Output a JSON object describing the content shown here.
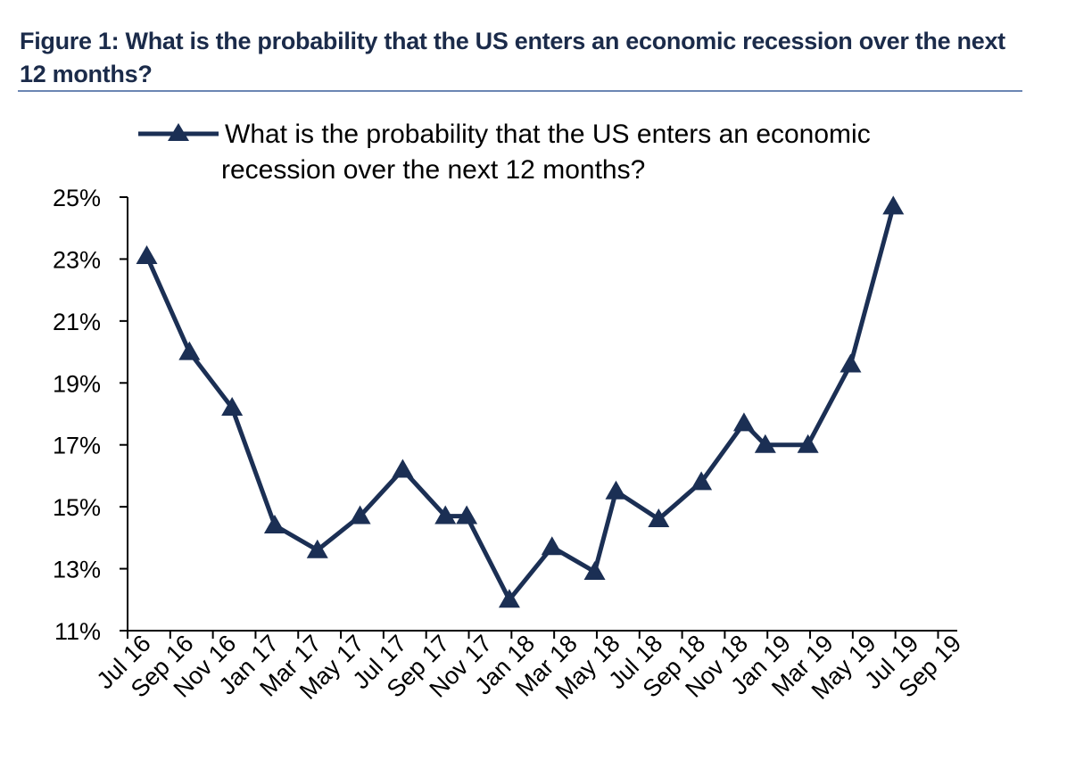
{
  "figure_title": "Figure 1: What is the probability that the US enters an economic recession over the next 12 months?",
  "colors": {
    "series": "#1b2f54",
    "axis": "#000000",
    "rule": "#6b86b3"
  },
  "chart_data": {
    "type": "line",
    "title": "Figure 1: What is the probability that the US enters an economic recession over the next 12 months?",
    "xlabel": "",
    "ylabel": "",
    "ylim": [
      11,
      25
    ],
    "yticks": [
      11,
      13,
      15,
      17,
      19,
      21,
      23,
      25
    ],
    "ytick_labels": [
      "11%",
      "13%",
      "15%",
      "17%",
      "19%",
      "21%",
      "23%",
      "25%"
    ],
    "grid": false,
    "legend_position": "top",
    "categories": [
      "Jul 16",
      "Aug 16",
      "Sep 16",
      "Oct 16",
      "Nov 16",
      "Dec 16",
      "Jan 17",
      "Feb 17",
      "Mar 17",
      "Apr 17",
      "May 17",
      "Jun 17",
      "Jul 17",
      "Aug 17",
      "Sep 17",
      "Oct 17",
      "Nov 17",
      "Dec 17",
      "Jan 18",
      "Feb 18",
      "Mar 18",
      "Apr 18",
      "May 18",
      "Jun 18",
      "Jul 18",
      "Aug 18",
      "Sep 18",
      "Oct 18",
      "Nov 18",
      "Dec 18",
      "Jan 19",
      "Feb 19",
      "Mar 19",
      "Apr 19",
      "May 19",
      "Jun 19",
      "Jul 19",
      "Aug 19",
      "Sep 19"
    ],
    "xtick_labels": [
      "Jul 16",
      "Sep 16",
      "Nov 16",
      "Jan 17",
      "Mar 17",
      "May 17",
      "Jul 17",
      "Sep 17",
      "Nov 17",
      "Jan 18",
      "Mar 18",
      "May 18",
      "Jul 18",
      "Sep 18",
      "Nov 18",
      "Jan 19",
      "Mar 19",
      "May 19",
      "Jul 19",
      "Sep 19"
    ],
    "series": [
      {
        "name": "What is the probability that the US enters an economic recession over the next 12 months?",
        "points": [
          {
            "x": "Jul 16",
            "y": 23.1
          },
          {
            "x": "Sep 16",
            "y": 20.0
          },
          {
            "x": "Nov 16",
            "y": 18.2
          },
          {
            "x": "Jan 17",
            "y": 14.4
          },
          {
            "x": "Mar 17",
            "y": 13.6
          },
          {
            "x": "May 17",
            "y": 14.7
          },
          {
            "x": "Jul 17",
            "y": 16.2
          },
          {
            "x": "Sep 17",
            "y": 14.7
          },
          {
            "x": "Oct 17",
            "y": 14.7
          },
          {
            "x": "Dec 17",
            "y": 12.0
          },
          {
            "x": "Feb 18",
            "y": 13.7
          },
          {
            "x": "Apr 18",
            "y": 12.9
          },
          {
            "x": "May 18",
            "y": 15.5
          },
          {
            "x": "Jul 18",
            "y": 14.6
          },
          {
            "x": "Sep 18",
            "y": 15.8
          },
          {
            "x": "Nov 18",
            "y": 17.7
          },
          {
            "x": "Dec 18",
            "y": 17.0
          },
          {
            "x": "Feb 19",
            "y": 17.0
          },
          {
            "x": "Apr 19",
            "y": 19.6
          },
          {
            "x": "Jun 19",
            "y": 24.7
          }
        ]
      }
    ]
  }
}
